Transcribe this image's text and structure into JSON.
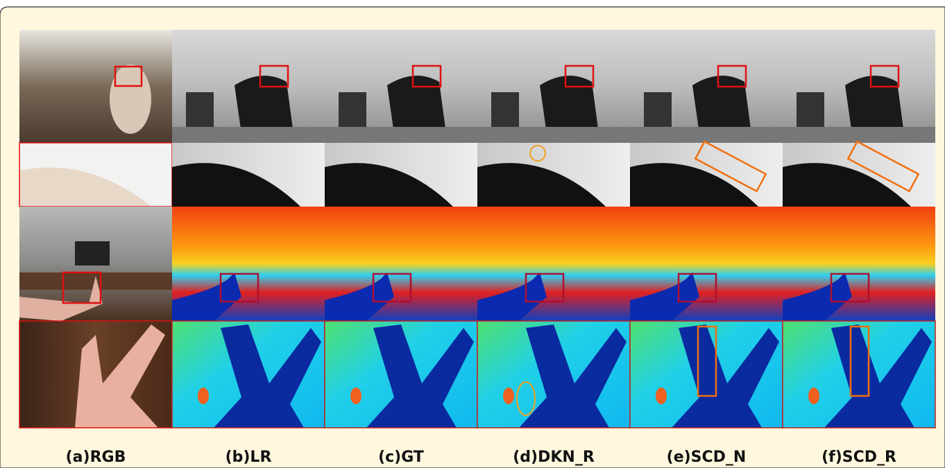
{
  "figure": {
    "column_labels": [
      "(a)RGB",
      "(b)LR",
      "(c)GT",
      "(d)DKN_R",
      "(e)SCD_N",
      "(f)SCD_R"
    ]
  }
}
